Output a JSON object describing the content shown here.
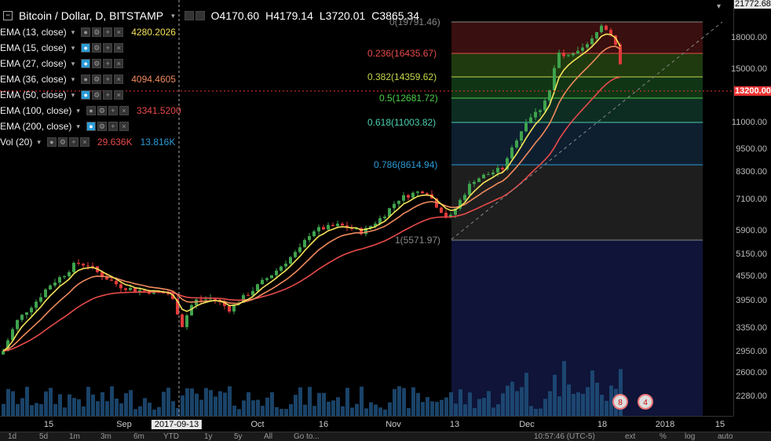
{
  "header": {
    "symbol": "Bitcoin / Dollar, D, BITSTAMP",
    "open": "O4170.60",
    "high": "H4179.14",
    "low": "L3720.01",
    "close": "C3865.34"
  },
  "indicators": [
    {
      "label": "EMA (13, close)",
      "value": "4280.2026",
      "color": "#f5e35a",
      "visible_on": false
    },
    {
      "label": "EMA (15, close)",
      "value": "",
      "color": "#dddddd",
      "visible_on": true
    },
    {
      "label": "EMA (27, close)",
      "value": "",
      "color": "#dddddd",
      "visible_on": true
    },
    {
      "label": "EMA (36, close)",
      "value": "4094.4605",
      "color": "#f08a5d",
      "visible_on": false
    },
    {
      "label": "EMA (50, close)",
      "value": "",
      "color": "#dddddd",
      "visible_on": true
    },
    {
      "label": "EMA (100, close)",
      "value": "3341.5200",
      "color": "#e84a4a",
      "visible_on": false
    },
    {
      "label": "EMA (200, close)",
      "value": "",
      "color": "#dddddd",
      "visible_on": true
    },
    {
      "label": "Vol (20)",
      "value": "29.636K",
      "value2": "13.816K",
      "color": "#e84a4a",
      "color2": "#2a9bd6",
      "visible_on": false
    }
  ],
  "fib_levels": [
    {
      "label": "0(19791.46)",
      "color": "#888888",
      "band": "#3a0f0f"
    },
    {
      "label": "0.236(16435.67)",
      "color": "#e84a4a",
      "band": "#1f3a0f"
    },
    {
      "label": "0.382(14359.62)",
      "color": "#c6d84a",
      "band": "#103515"
    },
    {
      "label": "0.5(12681.72)",
      "color": "#4ad04a",
      "band": "#0d2d23"
    },
    {
      "label": "0.618(11003.82)",
      "color": "#4ad0b0",
      "band": "#0e1f30"
    },
    {
      "label": "0.786(8614.94)",
      "color": "#2a9bd6",
      "band": "#1e1e1e"
    },
    {
      "label": "1(5571.97)",
      "color": "#888888",
      "band": "#0f1438"
    }
  ],
  "price_axis": {
    "labels": [
      "21772.68",
      "18000.00",
      "15000.00",
      "13200.00",
      "11000.00",
      "9500.00",
      "8300.00",
      "7100.00",
      "5900.00",
      "5150.00",
      "4550.00",
      "3950.00",
      "3350.00",
      "2950.00",
      "2600.00",
      "2280.00"
    ],
    "top_label": "21772.68",
    "current": "13200.00"
  },
  "time_axis": {
    "labels": [
      "15",
      "Sep",
      "2017-09-13",
      "Oct",
      "16",
      "Nov",
      "13",
      "Dec",
      "18",
      "2018",
      "15"
    ],
    "selected": "2017-09-13"
  },
  "bottom_bar": {
    "ranges": [
      "1d",
      "5d",
      "1m",
      "3m",
      "6m",
      "YTD",
      "1y",
      "5y",
      "All",
      "Go to..."
    ],
    "clock": "10:57:46 (UTC-5)",
    "options": [
      "ext",
      "%",
      "log",
      "auto"
    ]
  },
  "badges": [
    "8",
    "4"
  ],
  "colors": {
    "up": "#3fa34d",
    "down": "#e03a3a",
    "ema13": "#f5e35a",
    "ema36": "#f08a5d",
    "ema100": "#e84a4a",
    "volume": "#1f4f7a"
  }
}
